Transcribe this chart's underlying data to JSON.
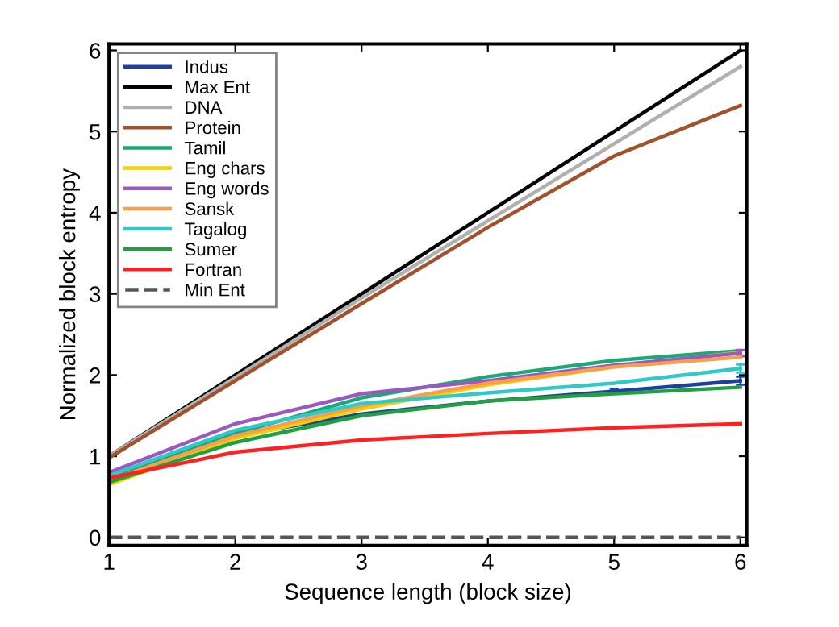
{
  "chart_data": {
    "type": "line",
    "xlabel": "Sequence length (block size)",
    "ylabel": "Normalized block entropy",
    "x": [
      1,
      2,
      3,
      4,
      5,
      6
    ],
    "xlim": [
      1,
      6.05
    ],
    "xticks": [
      1,
      2,
      3,
      4,
      5,
      6
    ],
    "ylim": [
      -0.1,
      6.08
    ],
    "yticks": [
      0,
      1,
      2,
      3,
      4,
      5,
      6
    ],
    "grid": false,
    "legend": "top left",
    "marker": "none",
    "series": [
      {
        "name": "Indus",
        "color": "#2040a0",
        "values": [
          0.72,
          1.25,
          1.52,
          1.68,
          1.8,
          1.93
        ],
        "errors": [
          null,
          null,
          null,
          null,
          0.03,
          0.05
        ]
      },
      {
        "name": "Max Ent",
        "color": "#000000",
        "values": [
          1,
          2,
          3,
          4,
          5,
          6
        ]
      },
      {
        "name": "DNA",
        "color": "#b0b0b0",
        "values": [
          1,
          1.97,
          2.95,
          3.9,
          4.85,
          5.8
        ]
      },
      {
        "name": "Protein",
        "color": "#a0522d",
        "values": [
          0.98,
          1.93,
          2.88,
          3.82,
          4.7,
          5.32
        ]
      },
      {
        "name": "Tamil",
        "color": "#1aa874",
        "values": [
          0.75,
          1.28,
          1.72,
          1.98,
          2.18,
          2.3
        ]
      },
      {
        "name": "Eng chars",
        "color": "#f5d000",
        "values": [
          0.65,
          1.22,
          1.58,
          1.88,
          2.1,
          2.28
        ]
      },
      {
        "name": "Eng words",
        "color": "#9b59c0",
        "values": [
          0.8,
          1.4,
          1.77,
          1.93,
          2.12,
          2.27
        ],
        "errors": [
          null,
          null,
          null,
          null,
          null,
          0.04
        ]
      },
      {
        "name": "Sansk",
        "color": "#f5a050",
        "values": [
          0.7,
          1.25,
          1.62,
          1.9,
          2.1,
          2.22
        ]
      },
      {
        "name": "Tagalog",
        "color": "#30c8c8",
        "values": [
          0.76,
          1.32,
          1.65,
          1.78,
          1.9,
          2.08
        ],
        "errors": [
          null,
          null,
          null,
          null,
          null,
          0.05
        ]
      },
      {
        "name": "Sumer",
        "color": "#20a040",
        "values": [
          0.68,
          1.17,
          1.5,
          1.68,
          1.77,
          1.85
        ]
      },
      {
        "name": "Fortran",
        "color": "#ff2020",
        "values": [
          0.73,
          1.05,
          1.2,
          1.28,
          1.35,
          1.4
        ]
      },
      {
        "name": "Min Ent",
        "color": "#555555",
        "values": [
          0,
          0,
          0,
          0,
          0,
          0
        ],
        "line_style": "dashed"
      }
    ]
  }
}
